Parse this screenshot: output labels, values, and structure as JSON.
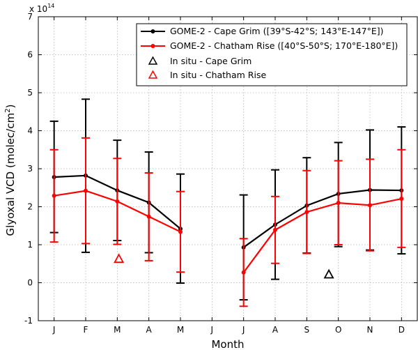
{
  "chart_data": {
    "type": "line",
    "xlabel": "Month",
    "ylabel_main": "Glyoxal VCD (molec/cm",
    "ylabel_sup": "2",
    "ylabel_end": ")",
    "multiplier_base": "x 10",
    "multiplier_exp": "14",
    "ylim": [
      -1,
      7
    ],
    "yticks": [
      -1,
      0,
      1,
      2,
      3,
      4,
      5,
      6,
      7
    ],
    "categories": [
      "J",
      "F",
      "M",
      "A",
      "M",
      "J",
      "J",
      "A",
      "S",
      "O",
      "N",
      "D"
    ],
    "grid": true,
    "legend_position": "top-right",
    "series": [
      {
        "name": "GOME-2 - Cape Grim ([39°S-42°S; 143°E-147°E])",
        "color": "#000000",
        "x": [
          1,
          2,
          3,
          4,
          5,
          7,
          8,
          9,
          10,
          11,
          12
        ],
        "values": [
          2.78,
          2.82,
          2.43,
          2.11,
          1.42,
          0.93,
          1.53,
          2.03,
          2.34,
          2.44,
          2.43
        ],
        "err_low": [
          1.32,
          0.8,
          1.11,
          0.79,
          -0.01,
          -0.45,
          0.09,
          0.78,
          0.95,
          0.86,
          0.76
        ],
        "err_high": [
          4.25,
          4.83,
          3.75,
          3.44,
          2.86,
          2.31,
          2.97,
          3.29,
          3.69,
          4.02,
          4.1
        ]
      },
      {
        "name": "GOME-2 - Chatham Rise ([40°S-50°S; 170°E-180°E])",
        "color": "#ff0000",
        "x": [
          1,
          2,
          3,
          4,
          5,
          7,
          8,
          9,
          10,
          11,
          12
        ],
        "values": [
          2.29,
          2.42,
          2.14,
          1.74,
          1.34,
          0.27,
          1.39,
          1.86,
          2.1,
          2.04,
          2.21
        ],
        "err_low": [
          1.07,
          1.03,
          1.01,
          0.58,
          0.28,
          -0.62,
          0.51,
          0.77,
          1.0,
          0.84,
          0.93
        ],
        "err_high": [
          3.5,
          3.81,
          3.27,
          2.89,
          2.4,
          1.16,
          2.27,
          2.95,
          3.21,
          3.25,
          3.5
        ]
      }
    ],
    "in_situ": [
      {
        "name": "In situ - Cape Grim",
        "color": "#000000",
        "x": 9.7,
        "y": 0.22
      },
      {
        "name": "In situ - Chatham Rise",
        "color": "#ff0000",
        "x": 3.05,
        "y": 0.63
      }
    ]
  }
}
